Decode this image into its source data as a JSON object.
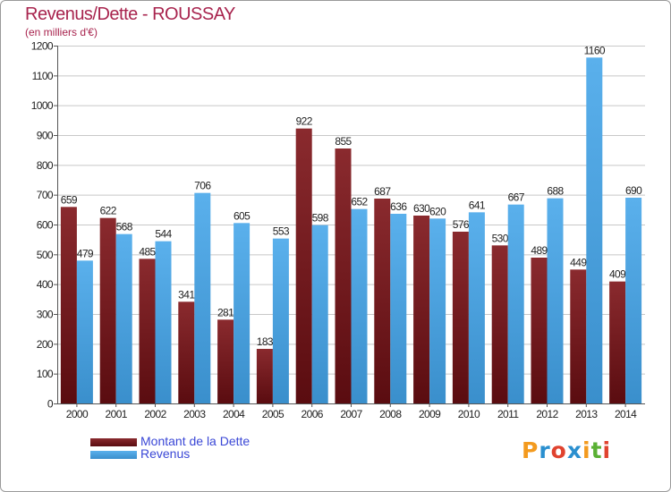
{
  "colors": {
    "title": "#a8244e",
    "dette": "#7a1a1f",
    "revenus": "#4aa3e0",
    "legend_text": "#3a47d6",
    "grid": "#c8c8c8"
  },
  "logo": {
    "text": "Proxiti",
    "letters": [
      "P",
      "r",
      "o",
      "x",
      "i",
      "t",
      "i"
    ],
    "colors": [
      "#f39a1e",
      "#2a8fcf",
      "#e0432f",
      "#2a8fcf",
      "#f39a1e",
      "#5ab034",
      "#e0432f"
    ]
  },
  "chart_data": {
    "type": "bar",
    "title": "Revenus/Dette - ROUSSAY",
    "subtitle": "(en milliers d'€)",
    "categories": [
      "2000",
      "2001",
      "2002",
      "2003",
      "2004",
      "2005",
      "2006",
      "2007",
      "2008",
      "2009",
      "2010",
      "2011",
      "2012",
      "2013",
      "2014"
    ],
    "series": [
      {
        "name": "Montant de la Dette",
        "color": "#7a1a1f",
        "values": [
          659,
          622,
          485,
          341,
          281,
          183,
          922,
          855,
          687,
          630,
          576,
          530,
          489,
          449,
          409
        ]
      },
      {
        "name": "Revenus",
        "color": "#4aa3e0",
        "values": [
          479,
          568,
          544,
          706,
          605,
          553,
          598,
          652,
          636,
          620,
          641,
          667,
          688,
          1160,
          690
        ]
      }
    ],
    "ylim": [
      0,
      1200
    ],
    "yticks": [
      0,
      100,
      200,
      300,
      400,
      500,
      600,
      700,
      800,
      900,
      1000,
      1100,
      1200
    ],
    "grid": true,
    "legend_position": "bottom-left",
    "data_labels": true
  }
}
